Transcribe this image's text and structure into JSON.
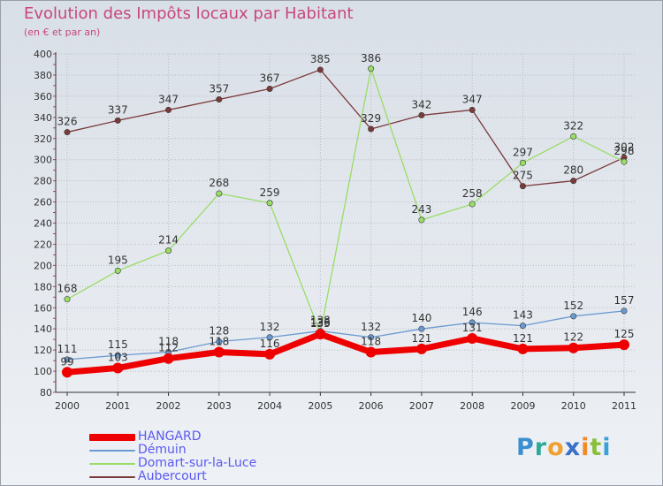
{
  "title": "Evolution des Impôts locaux par Habitant",
  "subtitle": "(en € et par an)",
  "brand": "Proxiti",
  "colors": {
    "title": "#c8467e",
    "legend_text": "#5a5af0",
    "axis": "#333333",
    "grid": "#b8bcc4"
  },
  "chart_data": {
    "type": "line",
    "title": "Evolution des Impôts locaux par Habitant",
    "subtitle": "(en € et par an)",
    "xlabel": "",
    "ylabel": "",
    "ylim": [
      80,
      400
    ],
    "yticks": [
      80,
      100,
      120,
      140,
      160,
      180,
      200,
      220,
      240,
      260,
      280,
      300,
      320,
      340,
      360,
      380,
      400
    ],
    "grid": true,
    "legend_position": "bottom-left",
    "x": [
      "2000",
      "2001",
      "2002",
      "2003",
      "2004",
      "2005",
      "2006",
      "2007",
      "2008",
      "2009",
      "2010",
      "2011"
    ],
    "series": [
      {
        "name": "HANGARD",
        "color": "#ee0000",
        "values": [
          99,
          103,
          112,
          118,
          116,
          135,
          118,
          121,
          131,
          121,
          122,
          125
        ],
        "labels": [
          "99",
          "103",
          "112",
          "118",
          "116",
          "135",
          "118",
          "121",
          "131",
          "121",
          "122",
          "125"
        ]
      },
      {
        "name": "Démuin",
        "color": "#6a9ad0",
        "values": [
          111,
          115,
          118,
          128,
          132,
          138,
          132,
          140,
          146,
          143,
          152,
          157
        ],
        "labels": [
          "111",
          "115",
          "118",
          "128",
          "132",
          "138",
          "132",
          "140",
          "146",
          "143",
          "152",
          "157"
        ]
      },
      {
        "name": "Domart-sur-la-Luce",
        "color": "#99dd66",
        "values": [
          168,
          195,
          214,
          268,
          259,
          136,
          386,
          243,
          258,
          297,
          322,
          298
        ],
        "labels": [
          "168",
          "195",
          "214",
          "268",
          "259",
          "136",
          "386",
          "243",
          "258",
          "297",
          "322",
          "298"
        ]
      },
      {
        "name": "Aubercourt",
        "color": "#7a3a3a",
        "values": [
          326,
          337,
          347,
          357,
          367,
          385,
          329,
          342,
          347,
          275,
          280,
          302
        ],
        "labels": [
          "326",
          "337",
          "347",
          "357",
          "367",
          "385",
          "329",
          "342",
          "347",
          "275",
          "280",
          "302"
        ]
      }
    ]
  }
}
